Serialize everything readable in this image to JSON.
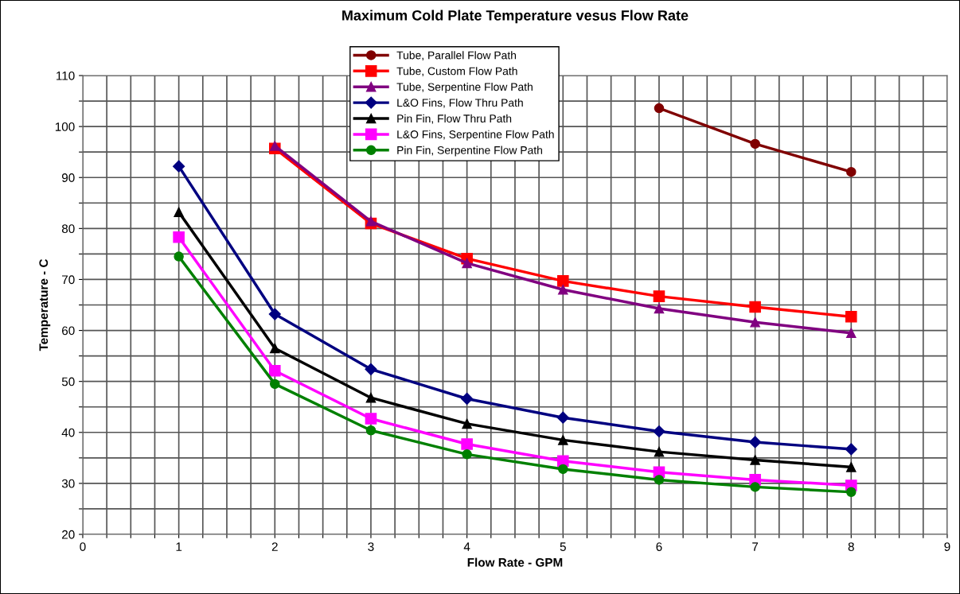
{
  "chart_data": {
    "type": "line",
    "title": "Maximum Cold Plate Temperature vesus Flow Rate",
    "xlabel": "Flow Rate - GPM",
    "ylabel": "Temperature - C",
    "x": [
      1,
      2,
      3,
      4,
      5,
      6,
      7,
      8
    ],
    "series": [
      {
        "name": "Tube, Parallel Flow Path",
        "color": "#800000",
        "marker": "circle",
        "values": [
          null,
          null,
          null,
          null,
          null,
          103.6,
          96.6,
          91.1
        ]
      },
      {
        "name": "Tube, Custom Flow Path",
        "color": "#ff0000",
        "marker": "square",
        "values": [
          null,
          95.7,
          81.0,
          74.1,
          69.7,
          66.7,
          64.6,
          62.7
        ]
      },
      {
        "name": "Tube, Serpentine Flow Path",
        "color": "#800080",
        "marker": "triangle",
        "values": [
          null,
          96.2,
          81.4,
          73.2,
          68.0,
          64.3,
          61.6,
          59.5
        ]
      },
      {
        "name": "L&O Fins, Flow Thru Path",
        "color": "#000080",
        "marker": "diamond",
        "values": [
          92.2,
          63.2,
          52.4,
          46.6,
          42.9,
          40.2,
          38.1,
          36.7
        ]
      },
      {
        "name": "Pin Fin, Flow Thru Path",
        "color": "#000000",
        "marker": "triangle",
        "values": [
          83.2,
          56.5,
          46.8,
          41.7,
          38.5,
          36.2,
          34.6,
          33.2
        ]
      },
      {
        "name": "L&O Fins, Serpentine Flow Path",
        "color": "#ff00ff",
        "marker": "square",
        "values": [
          78.3,
          52.1,
          42.7,
          37.7,
          34.4,
          32.2,
          30.7,
          29.6
        ]
      },
      {
        "name": "Pin Fin, Serpentine Flow Path",
        "color": "#008000",
        "marker": "circle",
        "values": [
          74.5,
          49.5,
          40.4,
          35.7,
          32.8,
          30.7,
          29.3,
          28.3
        ]
      }
    ],
    "xlim": [
      0,
      9
    ],
    "xticks": [
      0,
      {
        "value": 0.25,
        "label": null
      },
      {
        "value": 0.5,
        "label": null
      },
      {
        "value": 0.75,
        "label": null
      },
      1,
      {
        "value": 1.25,
        "label": null
      },
      {
        "value": 1.5,
        "label": null
      },
      {
        "value": 1.75,
        "label": null
      },
      2,
      {
        "value": 2.25,
        "label": null
      },
      {
        "value": 2.5,
        "label": null
      },
      {
        "value": 2.75,
        "label": null
      },
      3,
      {
        "value": 3.25,
        "label": null
      },
      {
        "value": 3.5,
        "label": null
      },
      {
        "value": 3.75,
        "label": null
      },
      4,
      {
        "value": 4.25,
        "label": null
      },
      {
        "value": 4.5,
        "label": null
      },
      {
        "value": 4.75,
        "label": null
      },
      5,
      {
        "value": 5.25,
        "label": null
      },
      {
        "value": 5.5,
        "label": null
      },
      {
        "value": 5.75,
        "label": null
      },
      6,
      {
        "value": 6.25,
        "label": null
      },
      {
        "value": 6.5,
        "label": null
      },
      {
        "value": 6.75,
        "label": null
      },
      7,
      {
        "value": 7.25,
        "label": null
      },
      {
        "value": 7.5,
        "label": null
      },
      {
        "value": 7.75,
        "label": null
      },
      8,
      {
        "value": 8.25,
        "label": null
      },
      {
        "value": 8.5,
        "label": null
      },
      {
        "value": 8.75,
        "label": null
      },
      9
    ],
    "ylim": [
      20,
      110
    ],
    "yticks": [
      20,
      {
        "value": 25,
        "label": null
      },
      30,
      {
        "value": 35,
        "label": null
      },
      40,
      {
        "value": 45,
        "label": null
      },
      50,
      {
        "value": 55,
        "label": null
      },
      60,
      {
        "value": 65,
        "label": null
      },
      70,
      {
        "value": 75,
        "label": null
      },
      80,
      {
        "value": 85,
        "label": null
      },
      90,
      {
        "value": 95,
        "label": null
      },
      100,
      {
        "value": 105,
        "label": null
      },
      110
    ],
    "grid": true,
    "legend": "top",
    "line_style": "solid"
  }
}
